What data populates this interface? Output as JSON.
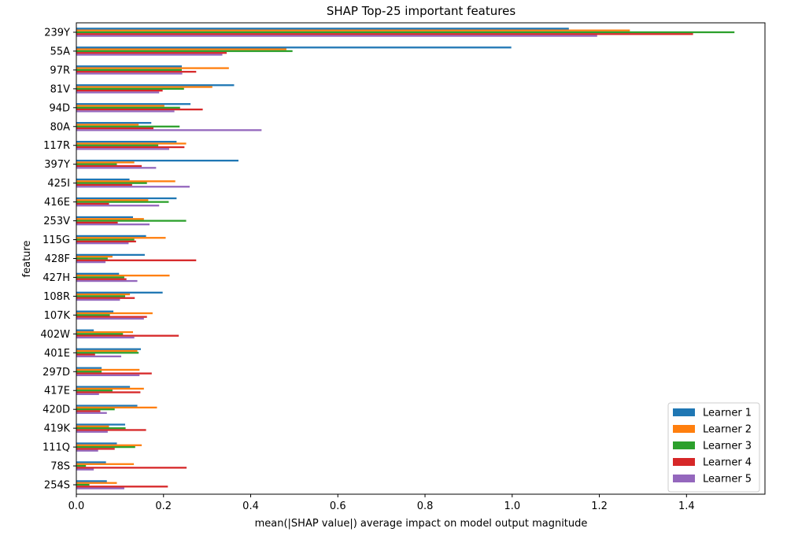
{
  "chart_data": {
    "type": "bar",
    "orientation": "horizontal",
    "title": "SHAP Top-25 important features",
    "xlabel": "mean(|SHAP value|) average impact on model output magnitude",
    "ylabel": "feature",
    "xlim": [
      0,
      1.58
    ],
    "xticks": [
      0.0,
      0.2,
      0.4,
      0.6,
      0.8,
      1.0,
      1.2,
      1.4
    ],
    "xtick_labels": [
      "0.0",
      "0.2",
      "0.4",
      "0.6",
      "0.8",
      "1.0",
      "1.2",
      "1.4"
    ],
    "legend_position": "lower-right",
    "grid": false,
    "categories": [
      "239Y",
      "55A",
      "97R",
      "81V",
      "94D",
      "80A",
      "117R",
      "397Y",
      "425I",
      "416E",
      "253V",
      "115G",
      "428F",
      "427H",
      "108R",
      "107K",
      "402W",
      "401E",
      "297D",
      "417E",
      "420D",
      "419K",
      "111Q",
      "78S",
      "254S"
    ],
    "series": [
      {
        "name": "Learner 1",
        "color": "#1f77b4",
        "values": [
          1.13,
          0.998,
          0.242,
          0.362,
          0.262,
          0.172,
          0.23,
          0.372,
          0.122,
          0.23,
          0.13,
          0.16,
          0.157,
          0.098,
          0.198,
          0.085,
          0.04,
          0.148,
          0.058,
          0.123,
          0.14,
          0.112,
          0.093,
          0.068,
          0.07
        ]
      },
      {
        "name": "Learner 2",
        "color": "#ff7f0e",
        "values": [
          1.27,
          0.482,
          0.35,
          0.312,
          0.202,
          0.143,
          0.252,
          0.133,
          0.227,
          0.165,
          0.155,
          0.205,
          0.083,
          0.214,
          0.123,
          0.175,
          0.13,
          0.14,
          0.145,
          0.155,
          0.185,
          0.075,
          0.15,
          0.132,
          0.093
        ]
      },
      {
        "name": "Learner 3",
        "color": "#2ca02c",
        "values": [
          1.51,
          0.496,
          0.242,
          0.247,
          0.238,
          0.237,
          0.188,
          0.093,
          0.162,
          0.212,
          0.252,
          0.133,
          0.072,
          0.11,
          0.112,
          0.077,
          0.107,
          0.143,
          0.058,
          0.083,
          0.088,
          0.113,
          0.135,
          0.022,
          0.03
        ]
      },
      {
        "name": "Learner 4",
        "color": "#d62728",
        "values": [
          1.415,
          0.345,
          0.275,
          0.198,
          0.29,
          0.177,
          0.248,
          0.15,
          0.128,
          0.075,
          0.095,
          0.137,
          0.275,
          0.115,
          0.134,
          0.162,
          0.235,
          0.043,
          0.173,
          0.147,
          0.055,
          0.16,
          0.088,
          0.253,
          0.21
        ]
      },
      {
        "name": "Learner 5",
        "color": "#9467bd",
        "values": [
          1.195,
          0.335,
          0.243,
          0.19,
          0.225,
          0.425,
          0.213,
          0.183,
          0.26,
          0.19,
          0.168,
          0.12,
          0.067,
          0.14,
          0.1,
          0.155,
          0.133,
          0.103,
          0.145,
          0.052,
          0.07,
          0.072,
          0.05,
          0.04,
          0.11
        ]
      }
    ]
  }
}
